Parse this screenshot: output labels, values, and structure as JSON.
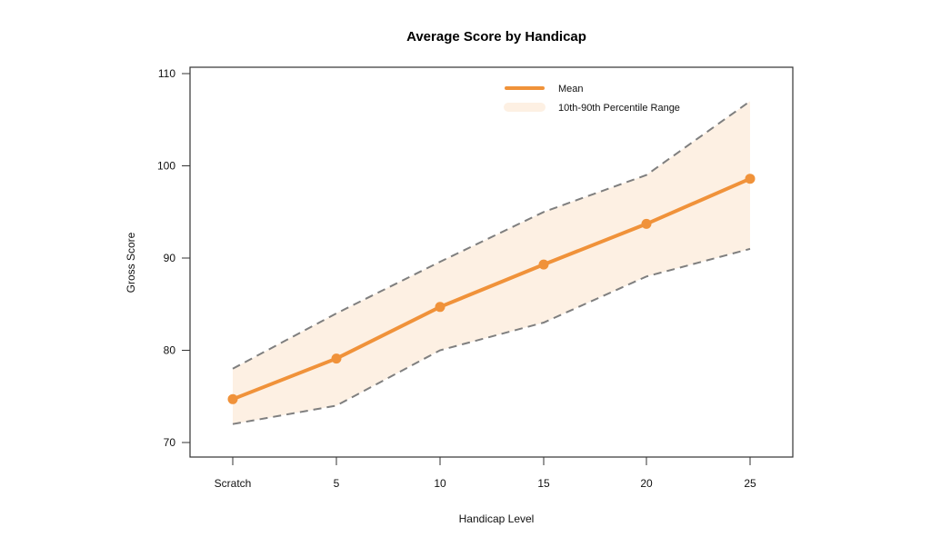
{
  "title": "Average Score by Handicap",
  "chart_data": {
    "type": "line",
    "title": "Average Score by Handicap",
    "xlabel": "Handicap Level",
    "ylabel": "Gross Score",
    "categories": [
      "Scratch",
      "5",
      "10",
      "15",
      "20",
      "25"
    ],
    "series": [
      {
        "name": "Mean",
        "values": [
          74.7,
          79.1,
          84.7,
          89.3,
          93.7,
          98.6
        ],
        "color": "#F0923A"
      },
      {
        "name": "10th Percentile",
        "values": [
          72,
          74,
          80,
          83,
          88,
          91
        ],
        "color": "#7F7F7F"
      },
      {
        "name": "90th Percentile",
        "values": [
          78,
          84,
          89.6,
          95,
          99,
          107
        ],
        "color": "#7F7F7F"
      }
    ],
    "band": {
      "name": "10th-90th Percentile Range",
      "color": "#FDF0E3"
    },
    "ylim": [
      68.4,
      110.8
    ],
    "yticks": [
      70,
      80,
      90,
      100,
      110
    ],
    "grid": false,
    "legend": {
      "position": "top-right",
      "entries": [
        "Mean",
        "10th-90th Percentile Range"
      ]
    }
  },
  "legend": {
    "mean_label": "Mean",
    "band_label": "10th-90th Percentile Range"
  },
  "axes": {
    "xlabel": "Handicap Level",
    "ylabel": "Gross Score"
  }
}
